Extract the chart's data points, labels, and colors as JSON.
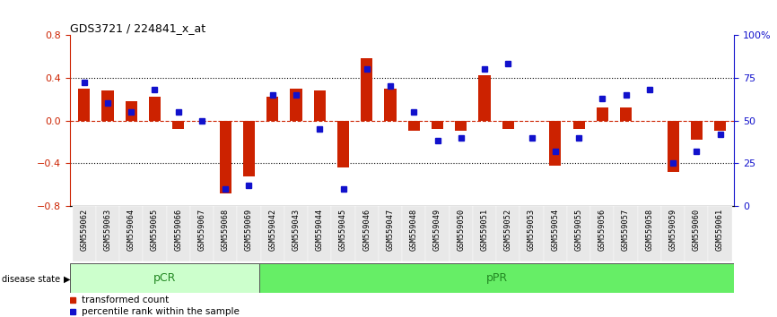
{
  "title": "GDS3721 / 224841_x_at",
  "samples": [
    "GSM559062",
    "GSM559063",
    "GSM559064",
    "GSM559065",
    "GSM559066",
    "GSM559067",
    "GSM559068",
    "GSM559069",
    "GSM559042",
    "GSM559043",
    "GSM559044",
    "GSM559045",
    "GSM559046",
    "GSM559047",
    "GSM559048",
    "GSM559049",
    "GSM559050",
    "GSM559051",
    "GSM559052",
    "GSM559053",
    "GSM559054",
    "GSM559055",
    "GSM559056",
    "GSM559057",
    "GSM559058",
    "GSM559059",
    "GSM559060",
    "GSM559061"
  ],
  "transformed_count": [
    0.3,
    0.28,
    0.18,
    0.22,
    -0.08,
    0.0,
    -0.68,
    -0.52,
    0.22,
    0.3,
    0.28,
    -0.44,
    0.58,
    0.3,
    -0.1,
    -0.08,
    -0.1,
    0.42,
    -0.08,
    0.0,
    -0.42,
    -0.08,
    0.12,
    0.12,
    0.0,
    -0.48,
    -0.18,
    -0.1
  ],
  "percentile_rank": [
    72,
    60,
    55,
    68,
    55,
    50,
    10,
    12,
    65,
    65,
    45,
    10,
    80,
    70,
    55,
    38,
    40,
    80,
    83,
    40,
    32,
    40,
    63,
    65,
    68,
    25,
    32,
    42
  ],
  "pCR_count": 8,
  "pPR_count": 20,
  "bar_color": "#cc2200",
  "dot_color": "#1111cc",
  "ylim_left": [
    -0.8,
    0.8
  ],
  "ylim_right": [
    0,
    100
  ],
  "yticks_left": [
    -0.8,
    -0.4,
    0.0,
    0.4,
    0.8
  ],
  "yticks_right": [
    0,
    25,
    50,
    75,
    100
  ],
  "ytick_labels_right": [
    "0",
    "25",
    "50",
    "75",
    "100%"
  ],
  "grid_values": [
    0.4,
    0.0,
    -0.4
  ],
  "pCR_color": "#ccffcc",
  "pPR_color": "#66ee66",
  "pCR_label": "pCR",
  "pPR_label": "pPR",
  "disease_state_label": "disease state",
  "label_color_left": "#cc2200",
  "label_color_right": "#1111cc",
  "bar_width": 0.5,
  "legend_bar_label": "transformed count",
  "legend_dot_label": "percentile rank within the sample",
  "bg_color": "#e8e8e8"
}
